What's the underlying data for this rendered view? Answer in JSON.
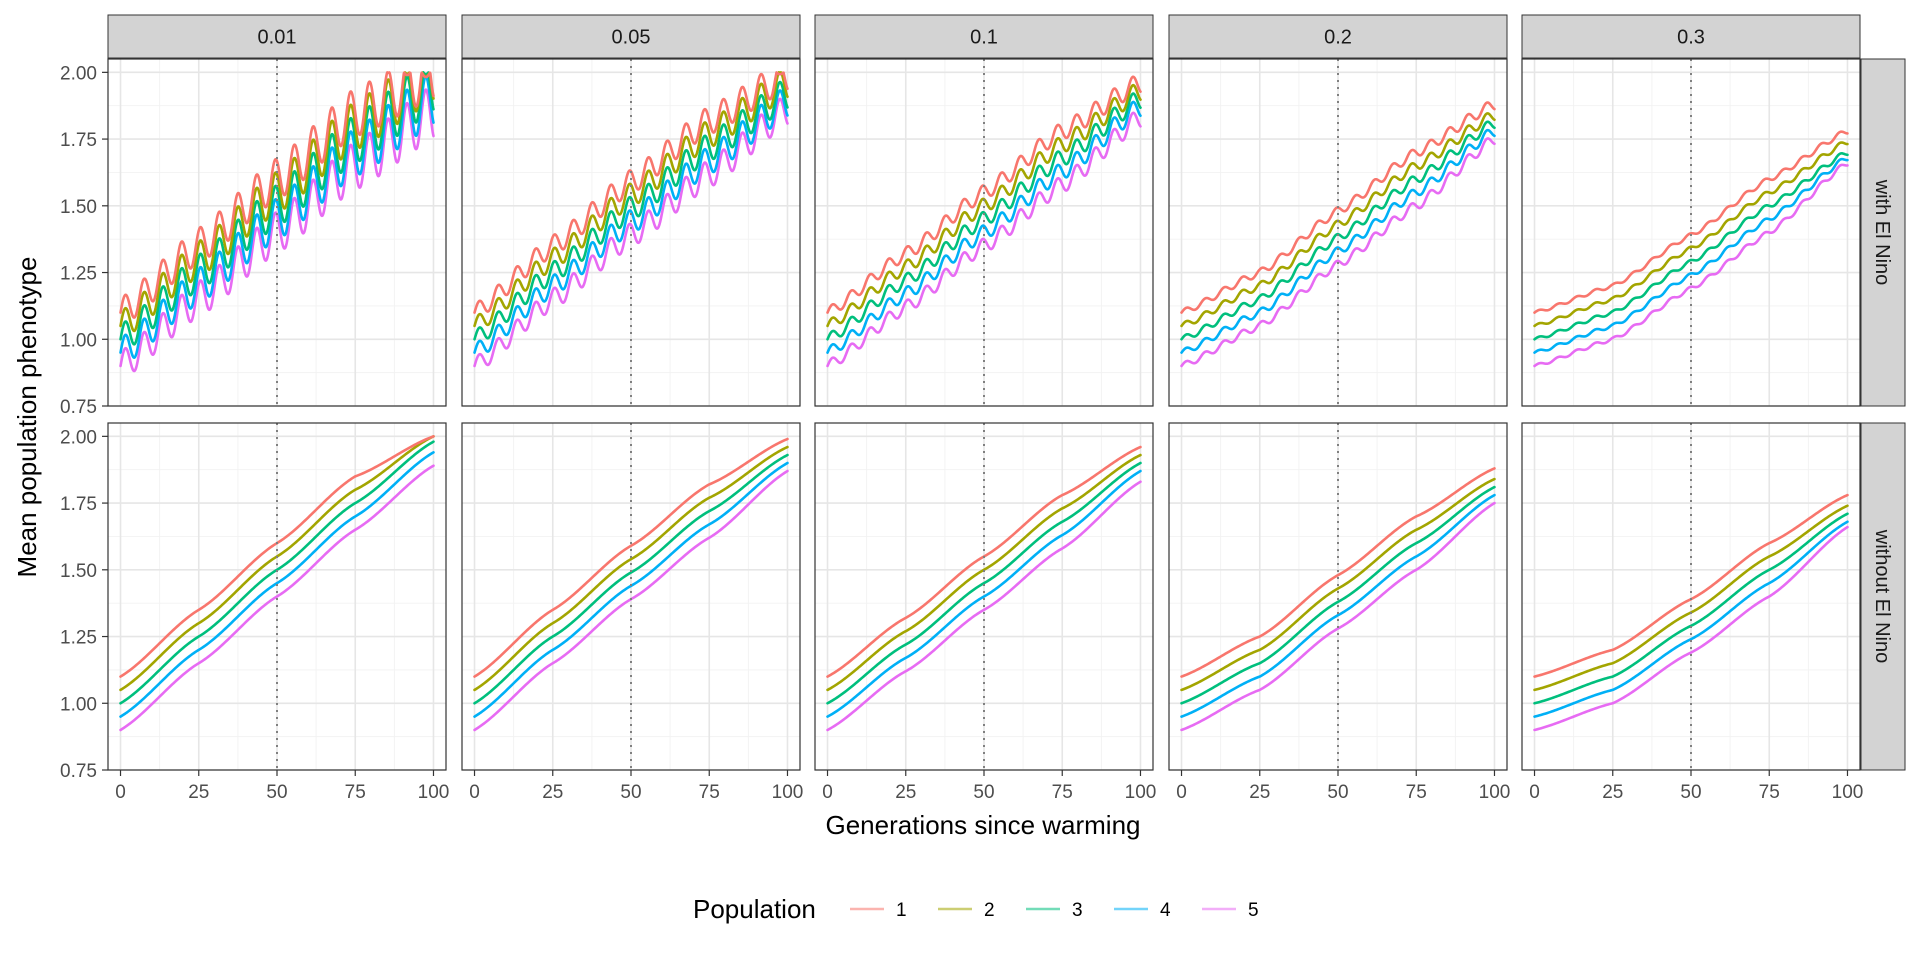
{
  "chart_data": {
    "type": "line",
    "title": "",
    "xlabel": "Generations since warming",
    "ylabel": "Mean population phenotype",
    "xlim": [
      -4,
      104
    ],
    "ylim": [
      0.75,
      2.05
    ],
    "x_ticks": [
      0,
      25,
      50,
      75,
      100
    ],
    "y_ticks": [
      0.75,
      1.0,
      1.25,
      1.5,
      1.75,
      2.0
    ],
    "y_tick_labels": [
      "0.75",
      "1.00",
      "1.25",
      "1.50",
      "1.75",
      "2.00"
    ],
    "x_tick_labels": [
      "0",
      "25",
      "50",
      "75",
      "100"
    ],
    "grid": true,
    "reference_line": {
      "x": 50,
      "style": "dotted"
    },
    "facet_columns": [
      "0.01",
      "0.05",
      "0.1",
      "0.2",
      "0.3"
    ],
    "facet_rows": [
      "with El Nino",
      "without El Nino"
    ],
    "legend": {
      "title": "Population",
      "position": "bottom",
      "entries": [
        {
          "label": "1",
          "color": "#F8766D"
        },
        {
          "label": "2",
          "color": "#A3A500"
        },
        {
          "label": "3",
          "color": "#00BF7D"
        },
        {
          "label": "4",
          "color": "#00B0F6"
        },
        {
          "label": "5",
          "color": "#E76BF3"
        }
      ]
    },
    "series_start_values": [
      1.1,
      1.05,
      1.0,
      0.95,
      0.9
    ],
    "panels": [
      {
        "row": "with El Nino",
        "col": "0.01",
        "x": [
          0,
          25,
          50,
          75,
          100
        ],
        "series": [
          [
            1.1,
            1.35,
            1.6,
            1.85,
            2.0
          ],
          [
            1.05,
            1.3,
            1.55,
            1.8,
            1.99
          ],
          [
            1.0,
            1.25,
            1.5,
            1.75,
            1.95
          ],
          [
            0.95,
            1.2,
            1.45,
            1.7,
            1.9
          ],
          [
            0.9,
            1.15,
            1.4,
            1.65,
            1.85
          ]
        ]
      },
      {
        "row": "with El Nino",
        "col": "0.05",
        "x": [
          0,
          25,
          50,
          75,
          100
        ],
        "series": [
          [
            1.1,
            1.35,
            1.59,
            1.82,
            1.99
          ],
          [
            1.05,
            1.3,
            1.54,
            1.77,
            1.96
          ],
          [
            1.0,
            1.25,
            1.49,
            1.72,
            1.92
          ],
          [
            0.95,
            1.2,
            1.44,
            1.67,
            1.89
          ],
          [
            0.9,
            1.15,
            1.39,
            1.62,
            1.86
          ]
        ]
      },
      {
        "row": "with El Nino",
        "col": "0.1",
        "x": [
          0,
          25,
          50,
          75,
          100
        ],
        "series": [
          [
            1.1,
            1.32,
            1.55,
            1.78,
            1.96
          ],
          [
            1.05,
            1.27,
            1.5,
            1.73,
            1.93
          ],
          [
            1.0,
            1.22,
            1.45,
            1.68,
            1.9
          ],
          [
            0.95,
            1.17,
            1.4,
            1.63,
            1.87
          ],
          [
            0.9,
            1.12,
            1.35,
            1.58,
            1.83
          ]
        ]
      },
      {
        "row": "with El Nino",
        "col": "0.2",
        "x": [
          0,
          25,
          50,
          75,
          100
        ],
        "series": [
          [
            1.1,
            1.25,
            1.48,
            1.7,
            1.88
          ],
          [
            1.05,
            1.2,
            1.43,
            1.65,
            1.84
          ],
          [
            1.0,
            1.15,
            1.38,
            1.6,
            1.81
          ],
          [
            0.95,
            1.1,
            1.33,
            1.55,
            1.78
          ],
          [
            0.9,
            1.05,
            1.28,
            1.5,
            1.75
          ]
        ]
      },
      {
        "row": "with El Nino",
        "col": "0.3",
        "x": [
          0,
          25,
          50,
          75,
          100
        ],
        "series": [
          [
            1.1,
            1.2,
            1.39,
            1.6,
            1.78
          ],
          [
            1.05,
            1.15,
            1.34,
            1.55,
            1.74
          ],
          [
            1.0,
            1.1,
            1.29,
            1.5,
            1.7
          ],
          [
            0.95,
            1.05,
            1.24,
            1.45,
            1.68
          ],
          [
            0.9,
            1.0,
            1.19,
            1.4,
            1.66
          ]
        ]
      },
      {
        "row": "without El Nino",
        "col": "0.01",
        "x": [
          0,
          25,
          50,
          75,
          100
        ],
        "series": [
          [
            1.1,
            1.35,
            1.6,
            1.85,
            2.0
          ],
          [
            1.05,
            1.3,
            1.55,
            1.8,
            2.0
          ],
          [
            1.0,
            1.25,
            1.5,
            1.75,
            1.98
          ],
          [
            0.95,
            1.2,
            1.45,
            1.7,
            1.94
          ],
          [
            0.9,
            1.15,
            1.4,
            1.65,
            1.89
          ]
        ]
      },
      {
        "row": "without El Nino",
        "col": "0.05",
        "x": [
          0,
          25,
          50,
          75,
          100
        ],
        "series": [
          [
            1.1,
            1.35,
            1.59,
            1.82,
            1.99
          ],
          [
            1.05,
            1.3,
            1.54,
            1.77,
            1.96
          ],
          [
            1.0,
            1.25,
            1.49,
            1.72,
            1.93
          ],
          [
            0.95,
            1.2,
            1.44,
            1.67,
            1.9
          ],
          [
            0.9,
            1.15,
            1.39,
            1.62,
            1.87
          ]
        ]
      },
      {
        "row": "without El Nino",
        "col": "0.1",
        "x": [
          0,
          25,
          50,
          75,
          100
        ],
        "series": [
          [
            1.1,
            1.32,
            1.55,
            1.78,
            1.96
          ],
          [
            1.05,
            1.27,
            1.5,
            1.73,
            1.93
          ],
          [
            1.0,
            1.22,
            1.45,
            1.68,
            1.9
          ],
          [
            0.95,
            1.17,
            1.4,
            1.63,
            1.87
          ],
          [
            0.9,
            1.12,
            1.35,
            1.58,
            1.83
          ]
        ]
      },
      {
        "row": "without El Nino",
        "col": "0.2",
        "x": [
          0,
          25,
          50,
          75,
          100
        ],
        "series": [
          [
            1.1,
            1.25,
            1.48,
            1.7,
            1.88
          ],
          [
            1.05,
            1.2,
            1.43,
            1.65,
            1.84
          ],
          [
            1.0,
            1.15,
            1.38,
            1.6,
            1.81
          ],
          [
            0.95,
            1.1,
            1.33,
            1.55,
            1.78
          ],
          [
            0.9,
            1.05,
            1.28,
            1.5,
            1.75
          ]
        ]
      },
      {
        "row": "without El Nino",
        "col": "0.3",
        "x": [
          0,
          25,
          50,
          75,
          100
        ],
        "series": [
          [
            1.1,
            1.2,
            1.39,
            1.6,
            1.78
          ],
          [
            1.05,
            1.15,
            1.34,
            1.55,
            1.74
          ],
          [
            1.0,
            1.1,
            1.29,
            1.5,
            1.71
          ],
          [
            0.95,
            1.05,
            1.24,
            1.45,
            1.68
          ],
          [
            0.9,
            1.0,
            1.19,
            1.4,
            1.66
          ]
        ]
      }
    ]
  }
}
